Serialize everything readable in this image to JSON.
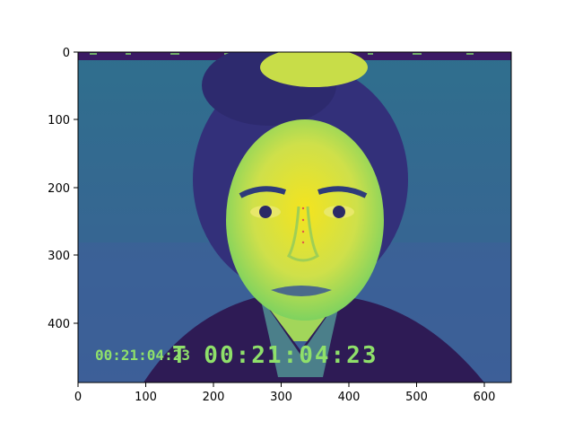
{
  "image": {
    "description_colormap": "viridis",
    "timecode_small": "00:21:04:23",
    "timecode_large": "T 00:21:04:23"
  },
  "axes": {
    "x_ticks": [
      0,
      100,
      200,
      300,
      400,
      500,
      600
    ],
    "y_ticks": [
      0,
      100,
      200,
      300,
      400
    ],
    "xlim": [
      0,
      640
    ],
    "ylim": [
      490,
      0
    ]
  },
  "colors": {
    "background": "#3b7d8c",
    "face": "#d7e14a",
    "highlight": "#f4e41e",
    "hair": "#33307a",
    "text_overlay": "#8fe06a"
  }
}
